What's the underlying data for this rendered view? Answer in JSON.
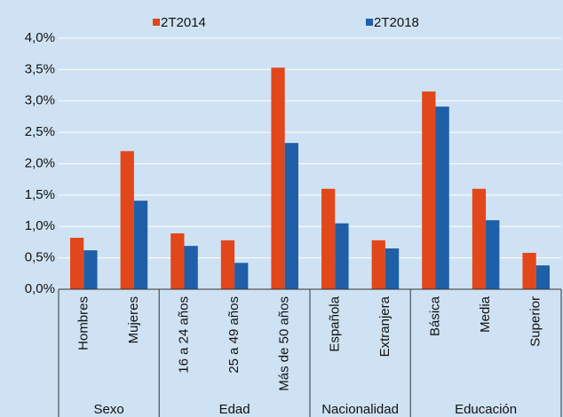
{
  "chart_data": {
    "type": "bar",
    "category_groups": [
      {
        "name": "Sexo",
        "categories": [
          "Hombres",
          "Mujeres"
        ]
      },
      {
        "name": "Edad",
        "categories": [
          "16 a 24 años",
          "25 a 49 años",
          "Más de 50 años"
        ]
      },
      {
        "name": "Nacionalidad",
        "categories": [
          "Española",
          "Extranjera"
        ]
      },
      {
        "name": "Educación",
        "categories": [
          "Básica",
          "Media",
          "Superior"
        ]
      }
    ],
    "series": [
      {
        "name": "2T2014",
        "color": "#e2461b",
        "values": [
          0.82,
          2.2,
          0.89,
          0.78,
          3.53,
          1.6,
          0.78,
          3.15,
          1.6,
          0.58
        ]
      },
      {
        "name": "2T2018",
        "color": "#1f5fa8",
        "values": [
          0.62,
          1.41,
          0.69,
          0.42,
          2.33,
          1.05,
          0.65,
          2.91,
          1.1,
          0.38
        ]
      }
    ],
    "ylim": [
      0,
      4
    ],
    "yticks": [
      {
        "value": 0,
        "label": "0,0%"
      },
      {
        "value": 0.5,
        "label": "0,5%"
      },
      {
        "value": 1,
        "label": "1,0%"
      },
      {
        "value": 1.5,
        "label": "1,5%"
      },
      {
        "value": 2,
        "label": "2,0%"
      },
      {
        "value": 2.5,
        "label": "2,5%"
      },
      {
        "value": 3,
        "label": "3,0%"
      },
      {
        "value": 3.5,
        "label": "3,5%"
      },
      {
        "value": 4,
        "label": "4,0%"
      }
    ],
    "grid": true
  }
}
